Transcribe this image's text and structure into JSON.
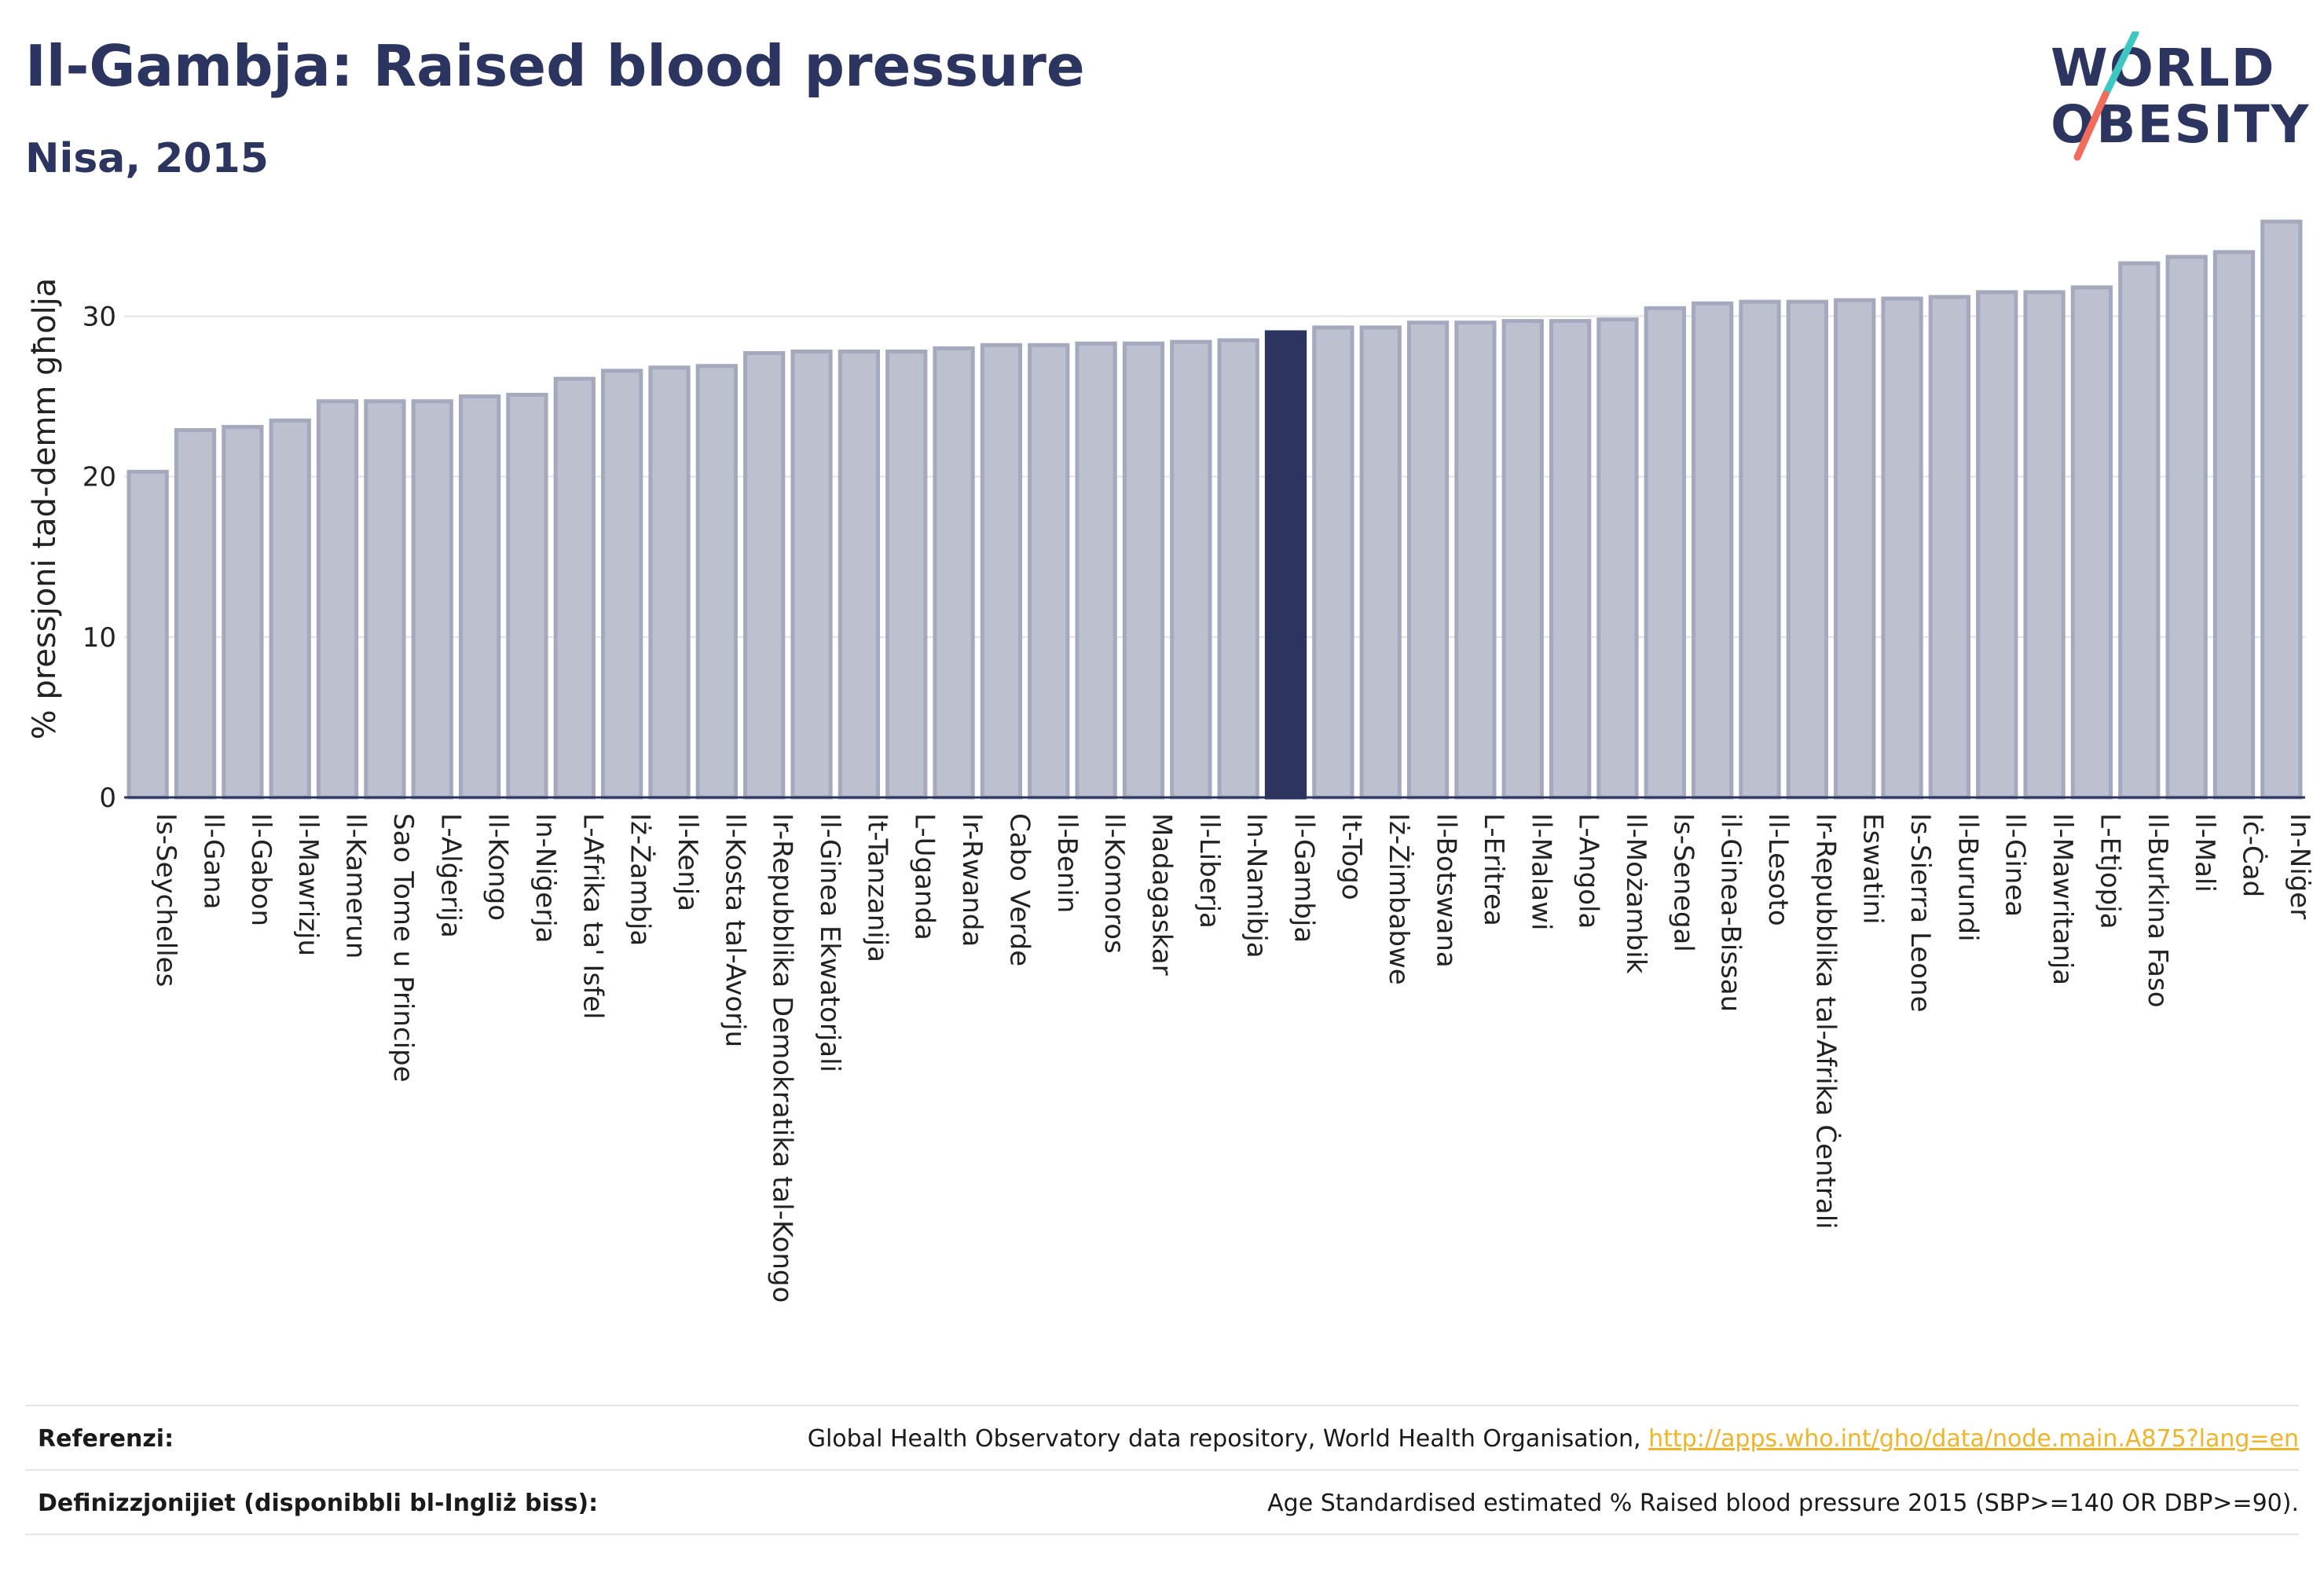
{
  "header": {
    "title": "Il-Gambja: Raised blood pressure",
    "subtitle": "Nisa, 2015"
  },
  "logo": {
    "line1": "WORLD",
    "line2": "OBESITY",
    "colors": {
      "text": "#2b355f",
      "slash_top": "#3ec6c2",
      "slash_bottom": "#f26b5b"
    }
  },
  "chart_data": {
    "type": "bar",
    "ylabel": "% pressjoni tad-demm għolja",
    "xlabel": "",
    "ylim": [
      0,
      36
    ],
    "yticks": [
      0,
      10,
      20,
      30
    ],
    "grid": true,
    "highlight": "Il-Gambja",
    "colors": {
      "bar": "#bcc0cf",
      "bar_edge": "#a4a9be",
      "highlight": "#2b355f",
      "grid": "#e3e3e3"
    },
    "categories": [
      "Is-Seychelles",
      "Il-Gana",
      "Il-Gabon",
      "Il-Mawrizju",
      "Il-Kamerun",
      "Sao Tome u Principe",
      "L-Alġerija",
      "Il-Kongo",
      "In-Niġerja",
      "L-Afrika ta' Isfel",
      "Iż-Żambja",
      "Il-Kenja",
      "Il-Kosta tal-Avorju",
      "Ir-Repubblika Demokratika tal-Kongo",
      "Il-Ginea Ekwatorjali",
      "It-Tanzanija",
      "L-Uganda",
      "Ir-Rwanda",
      "Cabo Verde",
      "Il-Benin",
      "Il-Komoros",
      "Madagaskar",
      "Il-Liberja",
      "In-Namibja",
      "Il-Gambja",
      "It-Togo",
      "Iż-Żimbabwe",
      "Il-Botswana",
      "L-Eritrea",
      "Il-Malawi",
      "L-Angola",
      "Il-Możambik",
      "Is-Senegal",
      "il-Ginea-Bissau",
      "Il-Lesoto",
      "Ir-Repubblika tal-Afrika Ċentrali",
      "Eswatini",
      "Is-Sierra Leone",
      "Il-Burundi",
      "Il-Ginea",
      "Il-Mawritanja",
      "L-Etjopja",
      "Il-Burkina Faso",
      "Il-Mali",
      "Iċ-Ċad",
      "In-Niġer"
    ],
    "values": [
      20.3,
      22.9,
      23.1,
      23.5,
      24.7,
      24.7,
      24.7,
      25.0,
      25.1,
      26.1,
      26.6,
      26.8,
      26.9,
      27.7,
      27.8,
      27.8,
      27.8,
      28.0,
      28.2,
      28.2,
      28.3,
      28.3,
      28.4,
      28.5,
      29.0,
      29.3,
      29.3,
      29.6,
      29.6,
      29.7,
      29.7,
      29.8,
      30.5,
      30.8,
      30.9,
      30.9,
      31.0,
      31.1,
      31.2,
      31.5,
      31.5,
      31.8,
      33.3,
      33.7,
      34.0,
      35.9
    ]
  },
  "footer": {
    "references_label": "Referenzi:",
    "references_text": "Global Health Observatory data repository, World Health Organisation,",
    "references_link": "http://apps.who.int/gho/data/node.main.A875?lang=en",
    "definitions_label": "Definizzjonijiet (disponibbli bl-Ingliż biss):",
    "definitions_text": "Age Standardised estimated % Raised blood pressure 2015 (SBP>=140 OR DBP>=90)."
  }
}
